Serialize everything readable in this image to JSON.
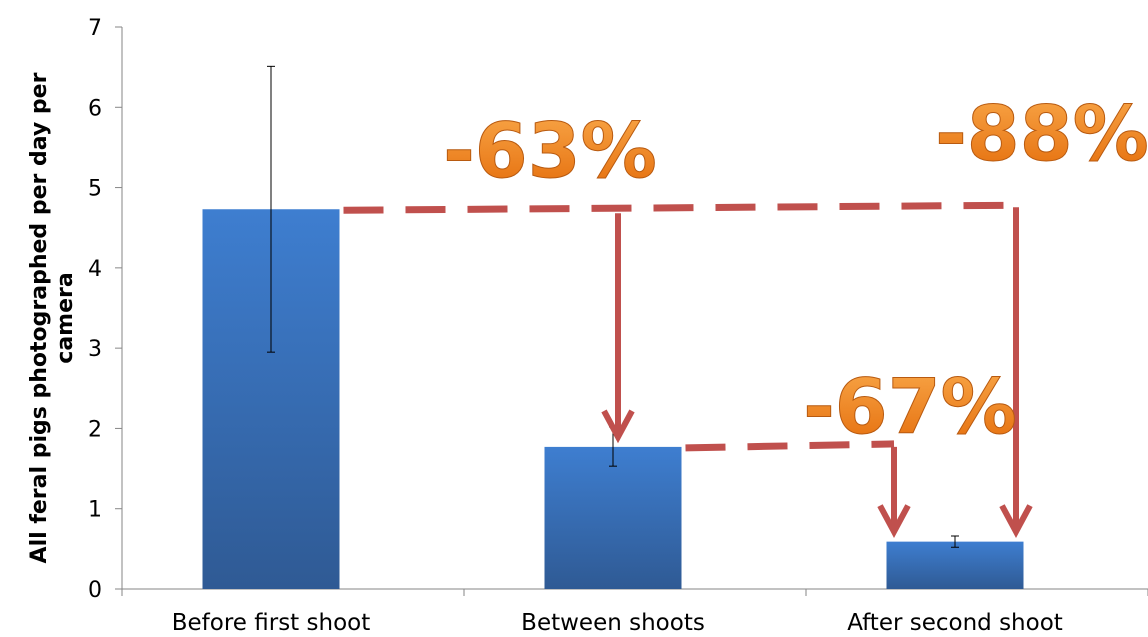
{
  "chart_data": {
    "type": "bar",
    "categories": [
      "Before first shoot",
      "Between shoots",
      "After second shoot"
    ],
    "series": [
      {
        "values": [
          4.73,
          1.77,
          0.59
        ],
        "error_low": [
          2.95,
          1.53,
          0.52
        ],
        "error_high": [
          6.51,
          2.02,
          0.66
        ]
      }
    ],
    "title": "",
    "xlabel": "",
    "ylabel": "All feral pigs photographed per day per camera",
    "ylim": [
      0,
      7
    ],
    "yticks": [
      0,
      1,
      2,
      3,
      4,
      5,
      6,
      7
    ],
    "grid": false,
    "legend": "none",
    "annotations": [
      {
        "text": "-63%",
        "from_category": 0,
        "to_category": 1
      },
      {
        "text": "-88%",
        "from_category": 0,
        "to_category": 2
      },
      {
        "text": "-67%",
        "from_category": 1,
        "to_category": 2
      }
    ],
    "colors": {
      "bar_top": "#3e7ed0",
      "bar_bottom": "#2f5a94",
      "arrow": "#c0504d",
      "annotation_light": "#f9a84a",
      "annotation_dark": "#e46c0a",
      "axis": "#868686"
    }
  }
}
